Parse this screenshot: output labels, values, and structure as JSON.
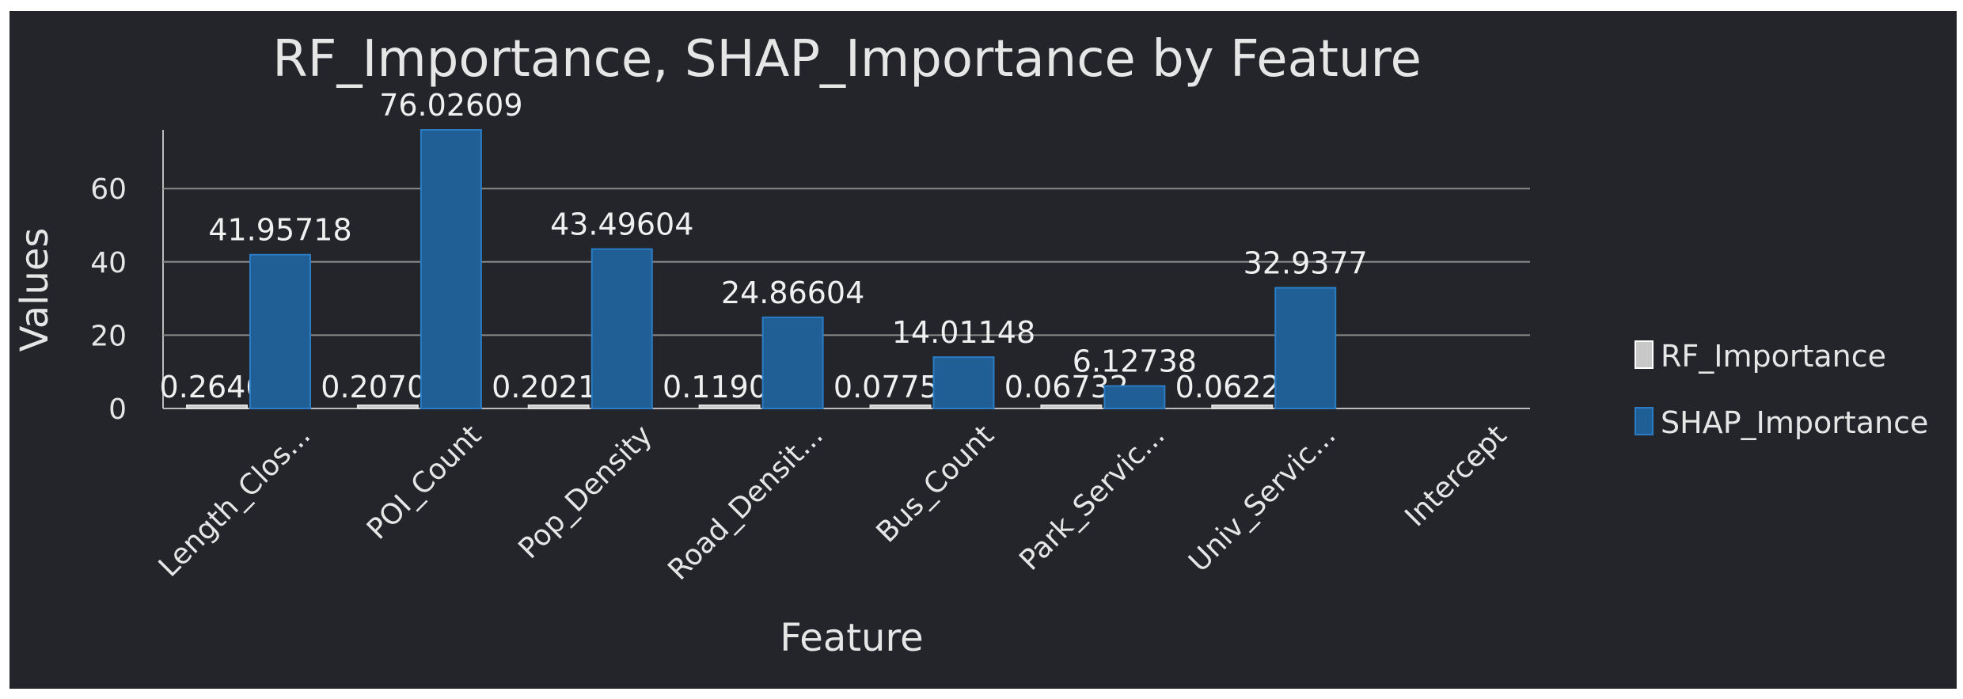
{
  "chart_data": {
    "type": "bar",
    "title": "RF_Importance, SHAP_Importance by Feature",
    "xlabel": "Feature",
    "ylabel": "Values",
    "categories": [
      "Length_Clos...",
      "POI_Count",
      "Pop_Density",
      "Road_Densit...",
      "Bus_Count",
      "Park_Servic...",
      "Univ_Servic...",
      "Intercept"
    ],
    "series": [
      {
        "name": "RF_Importance",
        "color": "#c8c8c8",
        "values": [
          0.2646,
          0.20706,
          0.20219,
          0.11906,
          0.07752,
          0.06732,
          0.06225,
          null
        ],
        "labels": [
          "0.2646",
          "0.20706",
          "0.20219",
          "0.11906",
          "0.07752",
          "0.06732",
          "0.06225",
          ""
        ]
      },
      {
        "name": "SHAP_Importance",
        "color": "#1f5f96",
        "values": [
          41.95718,
          76.02609,
          43.49604,
          24.86604,
          14.01148,
          6.12738,
          32.9377,
          null
        ],
        "labels": [
          "41.95718",
          "76.02609",
          "43.49604",
          "24.86604",
          "14.01148",
          "6.12738",
          "32.9377",
          ""
        ]
      }
    ],
    "yticks": [
      "0",
      "20",
      "40",
      "60"
    ],
    "ylim": [
      0,
      76.03
    ],
    "grid": true,
    "legend_position": "right"
  }
}
